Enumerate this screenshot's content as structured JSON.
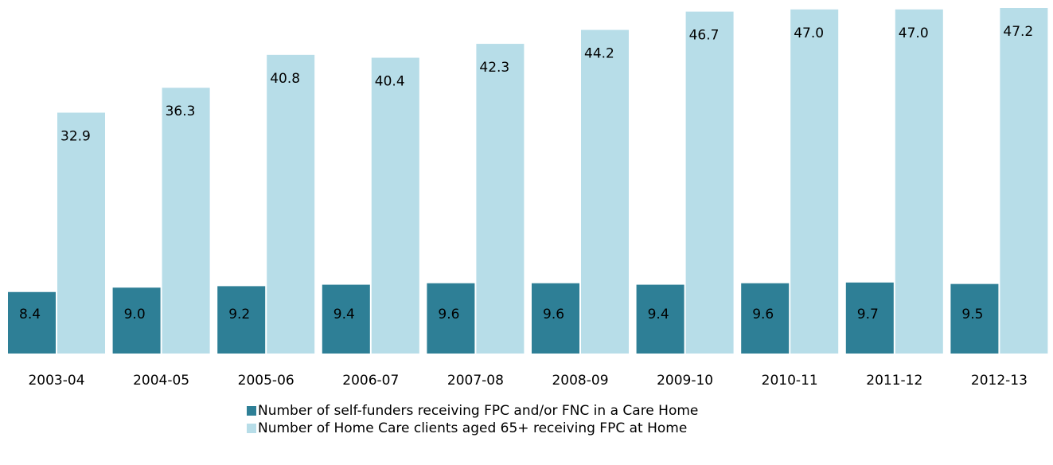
{
  "chart_data": {
    "type": "bar",
    "categories": [
      "2003-04",
      "2004-05",
      "2005-06",
      "2006-07",
      "2007-08",
      "2008-09",
      "2009-10",
      "2010-11",
      "2011-12",
      "2012-13"
    ],
    "series": [
      {
        "name": "Number of self-funders receiving FPC and/or FNC in a Care Home",
        "color": "#2e7f96",
        "values": [
          8.4,
          9.0,
          9.2,
          9.4,
          9.6,
          9.6,
          9.4,
          9.6,
          9.7,
          9.5
        ],
        "value_labels": [
          "8.4",
          "9.0",
          "9.2",
          "9.4",
          "9.6",
          "9.6",
          "9.4",
          "9.6",
          "9.7",
          "9.5"
        ]
      },
      {
        "name": "Number of Home Care  clients aged 65+ receiving FPC at Home",
        "color": "#b7dde8",
        "values": [
          32.9,
          36.3,
          40.8,
          40.4,
          42.3,
          44.2,
          46.7,
          47.0,
          47.0,
          47.2
        ],
        "value_labels": [
          "32.9",
          "36.3",
          "40.8",
          "40.4",
          "42.3",
          "44.2",
          "46.7",
          "47.0",
          "47.0",
          "47.2"
        ]
      }
    ]
  }
}
